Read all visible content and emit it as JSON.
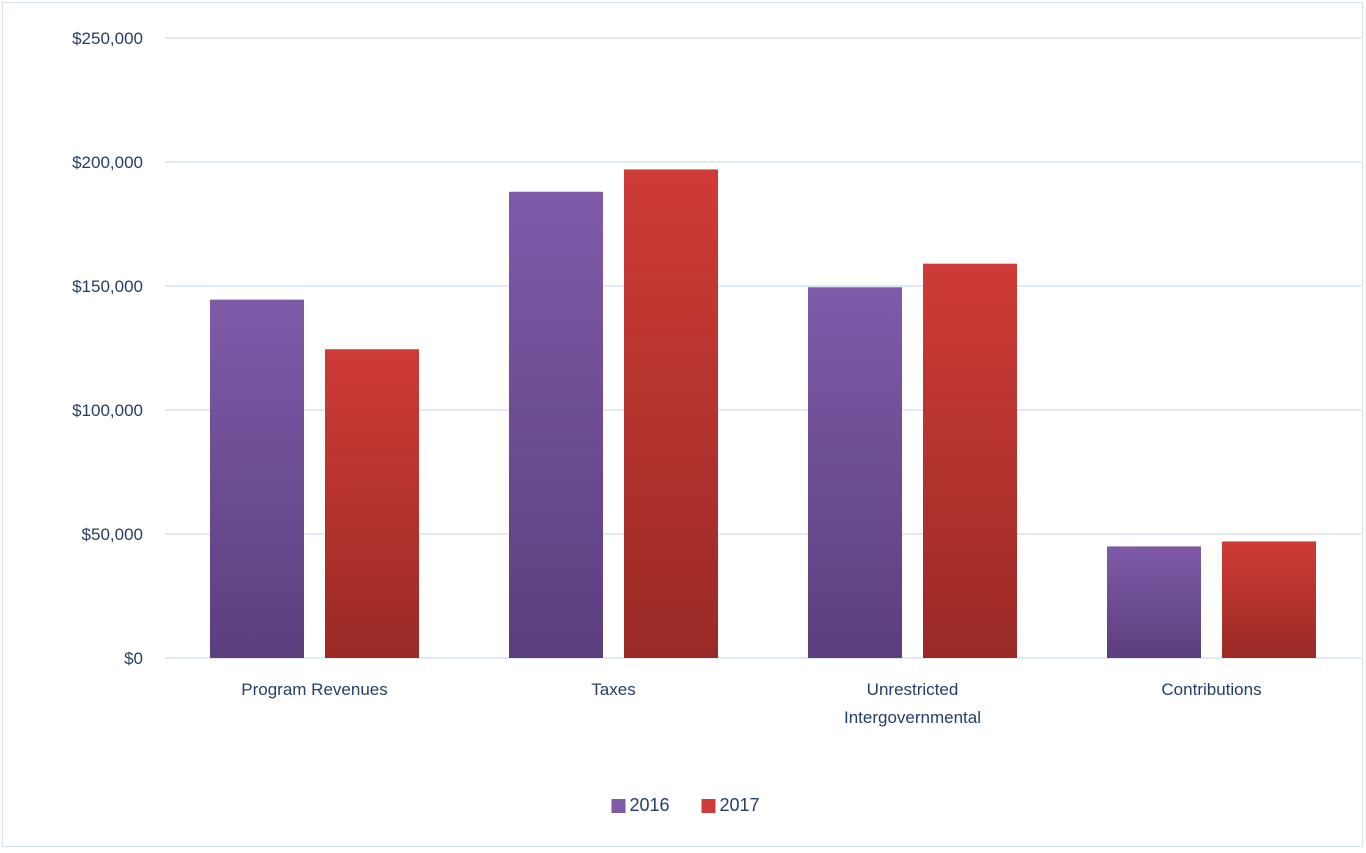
{
  "chart_data": {
    "type": "bar",
    "title": "",
    "xlabel": "",
    "ylabel": "",
    "categories": [
      "Program Revenues",
      "Taxes",
      "Unrestricted Intergovernmental",
      "Contributions"
    ],
    "category_lines": [
      [
        "Program Revenues"
      ],
      [
        "Taxes"
      ],
      [
        "Unrestricted",
        "Intergovernmental"
      ],
      [
        "Contributions"
      ]
    ],
    "series": [
      {
        "name": "2016",
        "values": [
          144500,
          188000,
          149500,
          45000
        ],
        "color": "#7e5aa8",
        "color_dark": "#5c3f7f"
      },
      {
        "name": "2017",
        "values": [
          124500,
          197000,
          159000,
          47000
        ],
        "color": "#cf3b36",
        "color_dark": "#9a2a26"
      }
    ],
    "ylim": [
      0,
      250000
    ],
    "yticks": [
      0,
      50000,
      100000,
      150000,
      200000,
      250000
    ],
    "ytick_labels": [
      "$0",
      "$50,000",
      "$100,000",
      "$150,000",
      "$200,000",
      "$250,000"
    ],
    "grid": true,
    "legend": "bottom-center",
    "gridline_color": "#d6e2f0"
  }
}
